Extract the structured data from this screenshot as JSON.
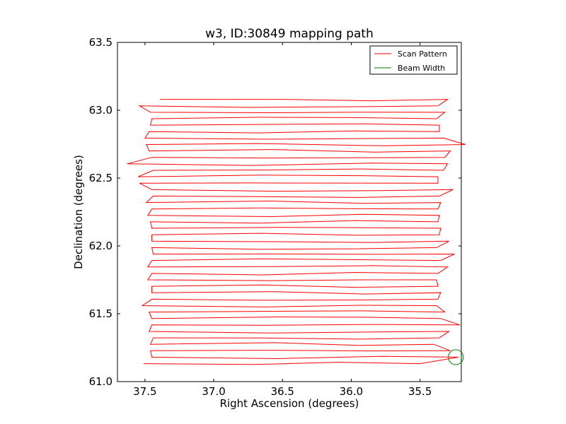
{
  "chart_data": {
    "type": "line",
    "title": "w3, ID:30849 mapping path",
    "xlabel": "Right Ascension (degrees)",
    "ylabel": "Declination (degrees)",
    "xlim": [
      37.7,
      35.2
    ],
    "ylim": [
      61.0,
      63.5
    ],
    "x_inverted": true,
    "xticks": [
      "37.5",
      "37.0",
      "36.5",
      "36.0",
      "35.5"
    ],
    "xtick_values": [
      37.5,
      37.0,
      36.5,
      36.0,
      35.5
    ],
    "yticks": [
      "61.0",
      "61.5",
      "62.0",
      "62.5",
      "63.0",
      "63.5"
    ],
    "ytick_values": [
      61.0,
      61.5,
      62.0,
      62.5,
      63.0,
      63.5
    ],
    "grid": false,
    "legend_position": "top-right",
    "series": [
      {
        "name": "Scan Pattern",
        "color": "#ff0000",
        "scan_start_dec": 63.08,
        "scan_end_dec": 61.11,
        "row_spacing_dec": 0.0475,
        "row_count": 42,
        "ra_left_turns": [
          37.39,
          37.54,
          37.46,
          37.45,
          37.46,
          37.47,
          37.5,
          37.49,
          37.47,
          37.45,
          37.63,
          37.44,
          37.55,
          37.54,
          37.45,
          37.44,
          37.49,
          37.45,
          37.48,
          37.46,
          37.45,
          37.45,
          37.45,
          37.45,
          37.44,
          37.45,
          37.48,
          37.45,
          37.48,
          37.45,
          37.45,
          37.45,
          37.52,
          37.47,
          37.45,
          37.45,
          37.47,
          37.44,
          37.46,
          37.46,
          37.45,
          37.51
        ],
        "ra_right_turns": [
          35.3,
          35.37,
          35.32,
          35.38,
          35.36,
          35.36,
          35.33,
          35.17,
          35.28,
          35.32,
          35.3,
          35.33,
          35.37,
          35.37,
          35.26,
          35.36,
          35.35,
          35.37,
          35.36,
          35.37,
          35.35,
          35.36,
          35.29,
          35.38,
          35.25,
          35.35,
          35.3,
          35.37,
          35.38,
          35.37,
          35.35,
          35.37,
          35.38,
          35.32,
          35.35,
          35.21,
          35.29,
          35.36,
          35.4,
          35.28,
          35.22,
          35.5
        ]
      },
      {
        "name": "Beam Width",
        "color": "#008000",
        "center_ra": 35.24,
        "center_dec": 61.18,
        "radius_deg": 0.055
      }
    ]
  }
}
